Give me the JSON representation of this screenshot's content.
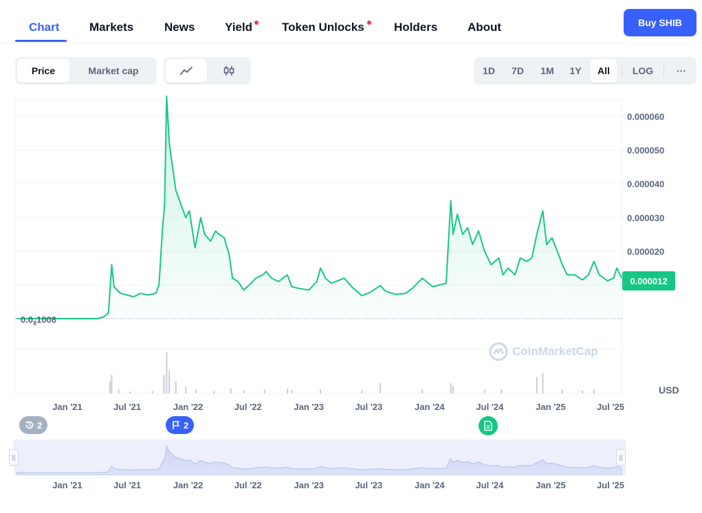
{
  "nav": {
    "tabs": [
      {
        "label": "Chart",
        "active": true
      },
      {
        "label": "Markets",
        "active": false
      },
      {
        "label": "News",
        "active": false
      },
      {
        "label": "Yield",
        "active": false,
        "dot": true
      },
      {
        "label": "Token Unlocks",
        "active": false,
        "dot": true
      },
      {
        "label": "Holders",
        "active": false
      },
      {
        "label": "About",
        "active": false
      }
    ],
    "buy_label": "Buy SHIB"
  },
  "controls": {
    "metric_tabs": [
      {
        "label": "Price",
        "active": true
      },
      {
        "label": "Market cap",
        "active": false
      }
    ],
    "chart_types": [
      {
        "icon": "line-chart-icon",
        "active": true
      },
      {
        "icon": "candlestick-icon",
        "active": false
      }
    ],
    "ranges": [
      {
        "label": "1D",
        "active": false
      },
      {
        "label": "7D",
        "active": false
      },
      {
        "label": "1M",
        "active": false
      },
      {
        "label": "1Y",
        "active": false
      },
      {
        "label": "All",
        "active": true
      }
    ],
    "log_label": "LOG",
    "more_label": "···"
  },
  "chart_data": {
    "type": "area",
    "ylim": [
      0,
      6.5e-05
    ],
    "y_ticks": [
      "0.000060",
      "0.000050",
      "0.000040",
      "0.000030",
      "0.000020"
    ],
    "x_ticks": [
      "Jan '21",
      "Jul '21",
      "Jan '22",
      "Jul '22",
      "Jan '23",
      "Jul '23",
      "Jan '24",
      "Jul '24",
      "Jan '25",
      "Jul '25"
    ],
    "current_price_label": "0.000012",
    "min_label_prefix": "0.0",
    "min_label_sub": "8",
    "min_label_suffix": "1008",
    "currency_label": "USD",
    "series": [
      {
        "line_color": "#16c784",
        "points": [
          [
            "2020-08-01",
            0.0
          ],
          [
            "2021-02-01",
            0.0
          ],
          [
            "2021-04-01",
            0.0
          ],
          [
            "2021-04-20",
            5e-07
          ],
          [
            "2021-05-05",
            1.6e-06
          ],
          [
            "2021-05-15",
            1.6e-05
          ],
          [
            "2021-05-22",
            9.5e-06
          ],
          [
            "2021-06-10",
            7.5e-06
          ],
          [
            "2021-07-01",
            7e-06
          ],
          [
            "2021-07-20",
            6.5e-06
          ],
          [
            "2021-08-10",
            7.5e-06
          ],
          [
            "2021-09-01",
            7e-06
          ],
          [
            "2021-09-25",
            7.5e-06
          ],
          [
            "2021-10-05",
            1e-05
          ],
          [
            "2021-10-15",
            2.6e-05
          ],
          [
            "2021-10-22",
            3.4e-05
          ],
          [
            "2021-10-28",
            6.6e-05
          ],
          [
            "2021-11-05",
            5.2e-05
          ],
          [
            "2021-11-15",
            4.5e-05
          ],
          [
            "2021-11-25",
            3.8e-05
          ],
          [
            "2021-12-10",
            3.4e-05
          ],
          [
            "2021-12-25",
            3e-05
          ],
          [
            "2022-01-05",
            3.2e-05
          ],
          [
            "2022-01-22",
            2.1e-05
          ],
          [
            "2022-02-08",
            3e-05
          ],
          [
            "2022-02-20",
            2.5e-05
          ],
          [
            "2022-03-10",
            2.3e-05
          ],
          [
            "2022-03-25",
            2.6e-05
          ],
          [
            "2022-04-05",
            2.5e-05
          ],
          [
            "2022-04-20",
            2.4e-05
          ],
          [
            "2022-05-05",
            1.9e-05
          ],
          [
            "2022-05-15",
            1.2e-05
          ],
          [
            "2022-06-01",
            1.1e-05
          ],
          [
            "2022-06-18",
            8.5e-06
          ],
          [
            "2022-07-05",
            1e-05
          ],
          [
            "2022-07-25",
            1.2e-05
          ],
          [
            "2022-08-15",
            1.3e-05
          ],
          [
            "2022-08-25",
            1.4e-05
          ],
          [
            "2022-09-10",
            1.2e-05
          ],
          [
            "2022-10-01",
            1.1e-05
          ],
          [
            "2022-10-28",
            1.3e-05
          ],
          [
            "2022-11-10",
            9.5e-06
          ],
          [
            "2022-12-01",
            9e-06
          ],
          [
            "2023-01-01",
            8.5e-06
          ],
          [
            "2023-01-25",
            1.1e-05
          ],
          [
            "2023-02-05",
            1.5e-05
          ],
          [
            "2023-02-20",
            1.2e-05
          ],
          [
            "2023-03-10",
            1.05e-05
          ],
          [
            "2023-04-18",
            1.2e-05
          ],
          [
            "2023-05-10",
            9.5e-06
          ],
          [
            "2023-06-10",
            6.8e-06
          ],
          [
            "2023-07-05",
            7.8e-06
          ],
          [
            "2023-08-05",
            9.8e-06
          ],
          [
            "2023-08-20",
            8.2e-06
          ],
          [
            "2023-09-20",
            7.2e-06
          ],
          [
            "2023-10-20",
            7.5e-06
          ],
          [
            "2023-11-10",
            9e-06
          ],
          [
            "2023-12-10",
            1.2e-05
          ],
          [
            "2024-01-10",
            9.5e-06
          ],
          [
            "2024-02-20",
            1.05e-05
          ],
          [
            "2024-03-05",
            3.5e-05
          ],
          [
            "2024-03-12",
            2.5e-05
          ],
          [
            "2024-03-25",
            3.1e-05
          ],
          [
            "2024-04-10",
            2.5e-05
          ],
          [
            "2024-04-25",
            2.7e-05
          ],
          [
            "2024-05-10",
            2.2e-05
          ],
          [
            "2024-05-28",
            2.6e-05
          ],
          [
            "2024-06-15",
            2e-05
          ],
          [
            "2024-07-05",
            1.6e-05
          ],
          [
            "2024-07-28",
            1.8e-05
          ],
          [
            "2024-08-10",
            1.3e-05
          ],
          [
            "2024-08-25",
            1.5e-05
          ],
          [
            "2024-09-15",
            1.3e-05
          ],
          [
            "2024-10-01",
            1.8e-05
          ],
          [
            "2024-10-20",
            1.7e-05
          ],
          [
            "2024-11-05",
            1.8e-05
          ],
          [
            "2024-11-20",
            2.5e-05
          ],
          [
            "2024-12-08",
            3.2e-05
          ],
          [
            "2024-12-20",
            2.2e-05
          ],
          [
            "2025-01-05",
            2.4e-05
          ],
          [
            "2025-01-25",
            1.9e-05
          ],
          [
            "2025-02-05",
            1.6e-05
          ],
          [
            "2025-02-20",
            1.3e-05
          ],
          [
            "2025-03-15",
            1.3e-05
          ],
          [
            "2025-04-07",
            1.15e-05
          ],
          [
            "2025-04-25",
            1.3e-05
          ],
          [
            "2025-05-12",
            1.7e-05
          ],
          [
            "2025-05-28",
            1.3e-05
          ],
          [
            "2025-06-22",
            1.12e-05
          ],
          [
            "2025-07-10",
            1.2e-05
          ],
          [
            "2025-07-20",
            1.5e-05
          ],
          [
            "2025-07-30",
            1.3e-05
          ],
          [
            "2025-08-03",
            1.2e-05
          ]
        ]
      },
      {
        "name": "volume",
        "bar_color": "#c7ccd6",
        "points": [
          [
            "2021-05-10",
            0.3
          ],
          [
            "2021-05-15",
            0.45
          ],
          [
            "2021-06-05",
            0.1
          ],
          [
            "2021-07-10",
            0.05
          ],
          [
            "2021-09-15",
            0.06
          ],
          [
            "2021-10-20",
            0.45
          ],
          [
            "2021-10-28",
            1.0
          ],
          [
            "2021-11-05",
            0.55
          ],
          [
            "2021-11-25",
            0.3
          ],
          [
            "2021-12-25",
            0.15
          ],
          [
            "2022-01-25",
            0.1
          ],
          [
            "2022-03-20",
            0.06
          ],
          [
            "2022-05-10",
            0.12
          ],
          [
            "2022-06-18",
            0.08
          ],
          [
            "2022-08-20",
            0.1
          ],
          [
            "2022-10-28",
            0.12
          ],
          [
            "2022-11-10",
            0.08
          ],
          [
            "2023-02-05",
            0.1
          ],
          [
            "2023-06-10",
            0.08
          ],
          [
            "2023-08-05",
            0.25
          ],
          [
            "2023-12-10",
            0.1
          ],
          [
            "2024-03-05",
            0.25
          ],
          [
            "2024-03-12",
            0.18
          ],
          [
            "2024-06-15",
            0.08
          ],
          [
            "2024-08-05",
            0.1
          ],
          [
            "2024-11-20",
            0.4
          ],
          [
            "2024-12-08",
            0.5
          ],
          [
            "2025-02-05",
            0.1
          ],
          [
            "2025-04-07",
            0.07
          ],
          [
            "2025-05-12",
            0.1
          ]
        ]
      }
    ]
  },
  "events": {
    "grey_count": "2",
    "blue_count": "2"
  },
  "watermark_text": "CoinMarketCap"
}
